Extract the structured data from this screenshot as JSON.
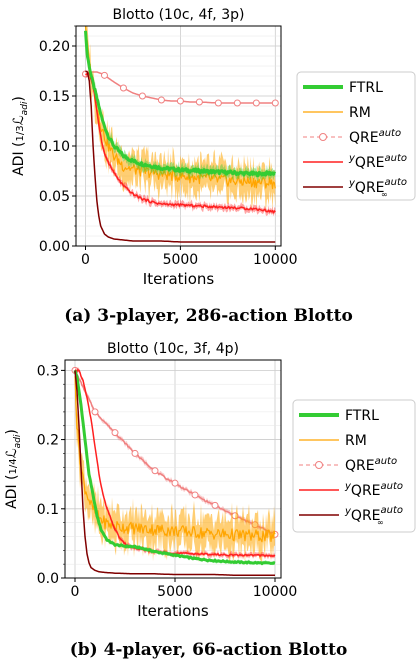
{
  "captions": {
    "a": "(a) 3-player, 286-action Blotto",
    "b": "(b) 4-player, 66-action Blotto"
  },
  "legend": {
    "ftrl": "FTRL",
    "rm": "RM",
    "qre": "QRE",
    "qre_sup": "auto",
    "yqre_pre": "y",
    "yqre": "QRE",
    "yqre_sup": "auto",
    "yqre_inf_pre": "y",
    "yqre_inf": "QRE",
    "yqre_inf_sup": "auto",
    "yqre_inf_sub": "∞"
  },
  "colors": {
    "ftrl": "#33cc33",
    "rm": "#ffa500",
    "qre": "#f08080",
    "yqre": "#ff2020",
    "yqre_inf": "#800000",
    "grid": "#cccccc"
  },
  "chart_data": [
    {
      "type": "line",
      "title": "Blotto (10c, 4f, 3p)",
      "ylabel_main": "ADI (",
      "ylabel_frac": "1/3",
      "ylabel_tail": "ℒ",
      "ylabel_sub": "adi",
      "ylabel_close": ")",
      "xlabel": "Iterations",
      "xlim": [
        -500,
        10300
      ],
      "ylim": [
        0,
        0.22
      ],
      "xticks": [
        0,
        5000,
        10000
      ],
      "xtick_labels": [
        "0",
        "5000",
        "10000"
      ],
      "yticks": [
        0.0,
        0.05,
        0.1,
        0.15,
        0.2
      ],
      "ytick_labels": [
        "0.00",
        "0.05",
        "0.10",
        "0.15",
        "0.20"
      ],
      "grid": true,
      "legend_position": "right",
      "series": [
        {
          "name": "FTRL",
          "key": "ftrl",
          "band": 0.006,
          "x": [
            0,
            100,
            300,
            500,
            700,
            900,
            1200,
            1500,
            2000,
            2500,
            3000,
            3500,
            4000,
            5000,
            6000,
            7000,
            8000,
            9000,
            10000
          ],
          "y": [
            0.215,
            0.19,
            0.17,
            0.155,
            0.14,
            0.125,
            0.11,
            0.1,
            0.09,
            0.085,
            0.082,
            0.08,
            0.078,
            0.076,
            0.075,
            0.074,
            0.073,
            0.072,
            0.073
          ]
        },
        {
          "name": "RM",
          "key": "rm",
          "band": 0.02,
          "x": [
            0,
            100,
            300,
            500,
            700,
            900,
            1200,
            1500,
            2000,
            2500,
            3000,
            4000,
            5000,
            6000,
            7000,
            8000,
            9000,
            10000
          ],
          "y": [
            0.215,
            0.2,
            0.17,
            0.15,
            0.13,
            0.115,
            0.1,
            0.09,
            0.08,
            0.077,
            0.075,
            0.072,
            0.07,
            0.068,
            0.066,
            0.065,
            0.064,
            0.063
          ]
        },
        {
          "name": "QRE auto",
          "key": "qre",
          "markers": true,
          "x": [
            0,
            300,
            600,
            900,
            1200,
            1500,
            2000,
            2500,
            3000,
            3500,
            4000,
            4500,
            5000,
            5500,
            6000,
            7000,
            8000,
            9000,
            10000
          ],
          "y": [
            0.172,
            0.174,
            0.174,
            0.172,
            0.168,
            0.164,
            0.158,
            0.153,
            0.15,
            0.148,
            0.146,
            0.145,
            0.145,
            0.144,
            0.144,
            0.143,
            0.143,
            0.143,
            0.143
          ]
        },
        {
          "name": "yQRE auto",
          "key": "yqre",
          "band": 0.004,
          "x": [
            0,
            200,
            400,
            600,
            800,
            1000,
            1300,
            1600,
            2000,
            2500,
            3000,
            3500,
            4000,
            5000,
            6000,
            7000,
            8000,
            9000,
            10000
          ],
          "y": [
            0.172,
            0.173,
            0.16,
            0.135,
            0.11,
            0.092,
            0.08,
            0.07,
            0.06,
            0.052,
            0.047,
            0.044,
            0.042,
            0.041,
            0.04,
            0.039,
            0.038,
            0.037,
            0.034
          ]
        },
        {
          "name": "yQRE auto ∞",
          "key": "yqre_inf",
          "x": [
            0,
            100,
            200,
            300,
            400,
            500,
            600,
            700,
            800,
            1000,
            1200,
            1500,
            2000,
            2500,
            3000,
            4000,
            5000,
            6000,
            7000,
            8000,
            9000,
            10000
          ],
          "y": [
            0.175,
            0.174,
            0.165,
            0.14,
            0.1,
            0.07,
            0.045,
            0.03,
            0.02,
            0.012,
            0.009,
            0.007,
            0.006,
            0.005,
            0.005,
            0.005,
            0.004,
            0.004,
            0.004,
            0.004,
            0.004,
            0.004
          ]
        }
      ]
    },
    {
      "type": "line",
      "title": "Blotto (10c, 3f, 4p)",
      "ylabel_main": "ADI (",
      "ylabel_frac": "1/4",
      "ylabel_tail": "ℒ",
      "ylabel_sub": "adi",
      "ylabel_close": ")",
      "xlabel": "Iterations",
      "xlim": [
        -500,
        10300
      ],
      "ylim": [
        0,
        0.315
      ],
      "xticks": [
        0,
        5000,
        10000
      ],
      "xtick_labels": [
        "0",
        "5000",
        "10000"
      ],
      "yticks": [
        0.0,
        0.1,
        0.2,
        0.3
      ],
      "ytick_labels": [
        "0.0",
        "0.1",
        "0.2",
        "0.3"
      ],
      "grid": true,
      "legend_position": "right",
      "series": [
        {
          "name": "FTRL",
          "key": "ftrl",
          "band": 0.003,
          "x": [
            0,
            100,
            300,
            500,
            700,
            900,
            1100,
            1300,
            1600,
            2000,
            2500,
            3000,
            3500,
            4000,
            5000,
            6000,
            7000,
            8000,
            9000,
            10000
          ],
          "y": [
            0.3,
            0.29,
            0.25,
            0.2,
            0.15,
            0.12,
            0.09,
            0.07,
            0.055,
            0.048,
            0.046,
            0.045,
            0.042,
            0.038,
            0.033,
            0.028,
            0.025,
            0.023,
            0.022,
            0.021
          ]
        },
        {
          "name": "RM",
          "key": "rm",
          "band": 0.03,
          "x": [
            0,
            100,
            300,
            500,
            800,
            1100,
            1500,
            2000,
            2500,
            3000,
            4000,
            5000,
            6000,
            7000,
            8000,
            9000,
            10000
          ],
          "y": [
            0.3,
            0.22,
            0.16,
            0.13,
            0.105,
            0.09,
            0.08,
            0.075,
            0.073,
            0.072,
            0.07,
            0.068,
            0.066,
            0.064,
            0.062,
            0.061,
            0.06
          ]
        },
        {
          "name": "QRE auto",
          "key": "qre",
          "markers": true,
          "band": 0.004,
          "x": [
            0,
            500,
            1000,
            1500,
            2000,
            2500,
            3000,
            3500,
            4000,
            4500,
            5000,
            5500,
            6000,
            6500,
            7000,
            7500,
            8000,
            8500,
            9000,
            9500,
            10000
          ],
          "y": [
            0.3,
            0.27,
            0.24,
            0.225,
            0.21,
            0.195,
            0.18,
            0.167,
            0.155,
            0.145,
            0.137,
            0.128,
            0.12,
            0.112,
            0.105,
            0.097,
            0.09,
            0.083,
            0.077,
            0.07,
            0.063
          ]
        },
        {
          "name": "yQRE auto",
          "key": "yqre",
          "band": 0.004,
          "x": [
            0,
            200,
            400,
            600,
            800,
            1000,
            1200,
            1400,
            1600,
            1800,
            2000,
            2300,
            2600,
            3000,
            3500,
            4000,
            5000,
            6000,
            7000,
            8000,
            9000,
            10000
          ],
          "y": [
            0.3,
            0.3,
            0.285,
            0.26,
            0.23,
            0.19,
            0.15,
            0.12,
            0.1,
            0.085,
            0.07,
            0.055,
            0.047,
            0.043,
            0.04,
            0.038,
            0.036,
            0.035,
            0.034,
            0.033,
            0.033,
            0.032
          ]
        },
        {
          "name": "yQRE auto ∞",
          "key": "yqre_inf",
          "x": [
            0,
            100,
            200,
            300,
            400,
            500,
            600,
            700,
            800,
            1000,
            1200,
            1500,
            2000,
            3000,
            4000,
            5000,
            6000,
            7000,
            8000,
            9000,
            10000
          ],
          "y": [
            0.3,
            0.27,
            0.22,
            0.16,
            0.1,
            0.06,
            0.035,
            0.022,
            0.015,
            0.011,
            0.009,
            0.008,
            0.007,
            0.006,
            0.006,
            0.005,
            0.005,
            0.005,
            0.004,
            0.004,
            0.004
          ]
        }
      ]
    }
  ]
}
